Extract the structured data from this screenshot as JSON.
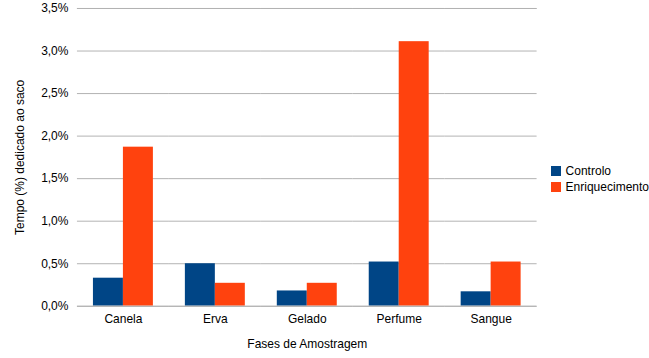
{
  "chart_data": {
    "type": "bar",
    "categories": [
      "Canela",
      "Erva",
      "Gelado",
      "Perfume",
      "Sangue"
    ],
    "series": [
      {
        "name": "Controlo",
        "color": "#004586",
        "values": [
          0.33,
          0.5,
          0.18,
          0.52,
          0.17
        ]
      },
      {
        "name": "Enriquecimento",
        "color": "#ff420e",
        "values": [
          1.87,
          0.27,
          0.27,
          3.11,
          0.52
        ]
      }
    ],
    "xlabel": "Fases de Amostragem",
    "ylabel": "Tempo (%) dedicado ao saco",
    "ylim": [
      0,
      3.5
    ],
    "yticks": [
      {
        "value": 0,
        "label": "0,0%"
      },
      {
        "value": 0.5,
        "label": "0,5%"
      },
      {
        "value": 1,
        "label": "1,0%"
      },
      {
        "value": 1.5,
        "label": "1,5%"
      },
      {
        "value": 2,
        "label": "2,0%"
      },
      {
        "value": 2.5,
        "label": "2,5%"
      },
      {
        "value": 3,
        "label": "3,0%"
      },
      {
        "value": 3.5,
        "label": "3,5%"
      }
    ],
    "grid": true,
    "legend": "right"
  }
}
